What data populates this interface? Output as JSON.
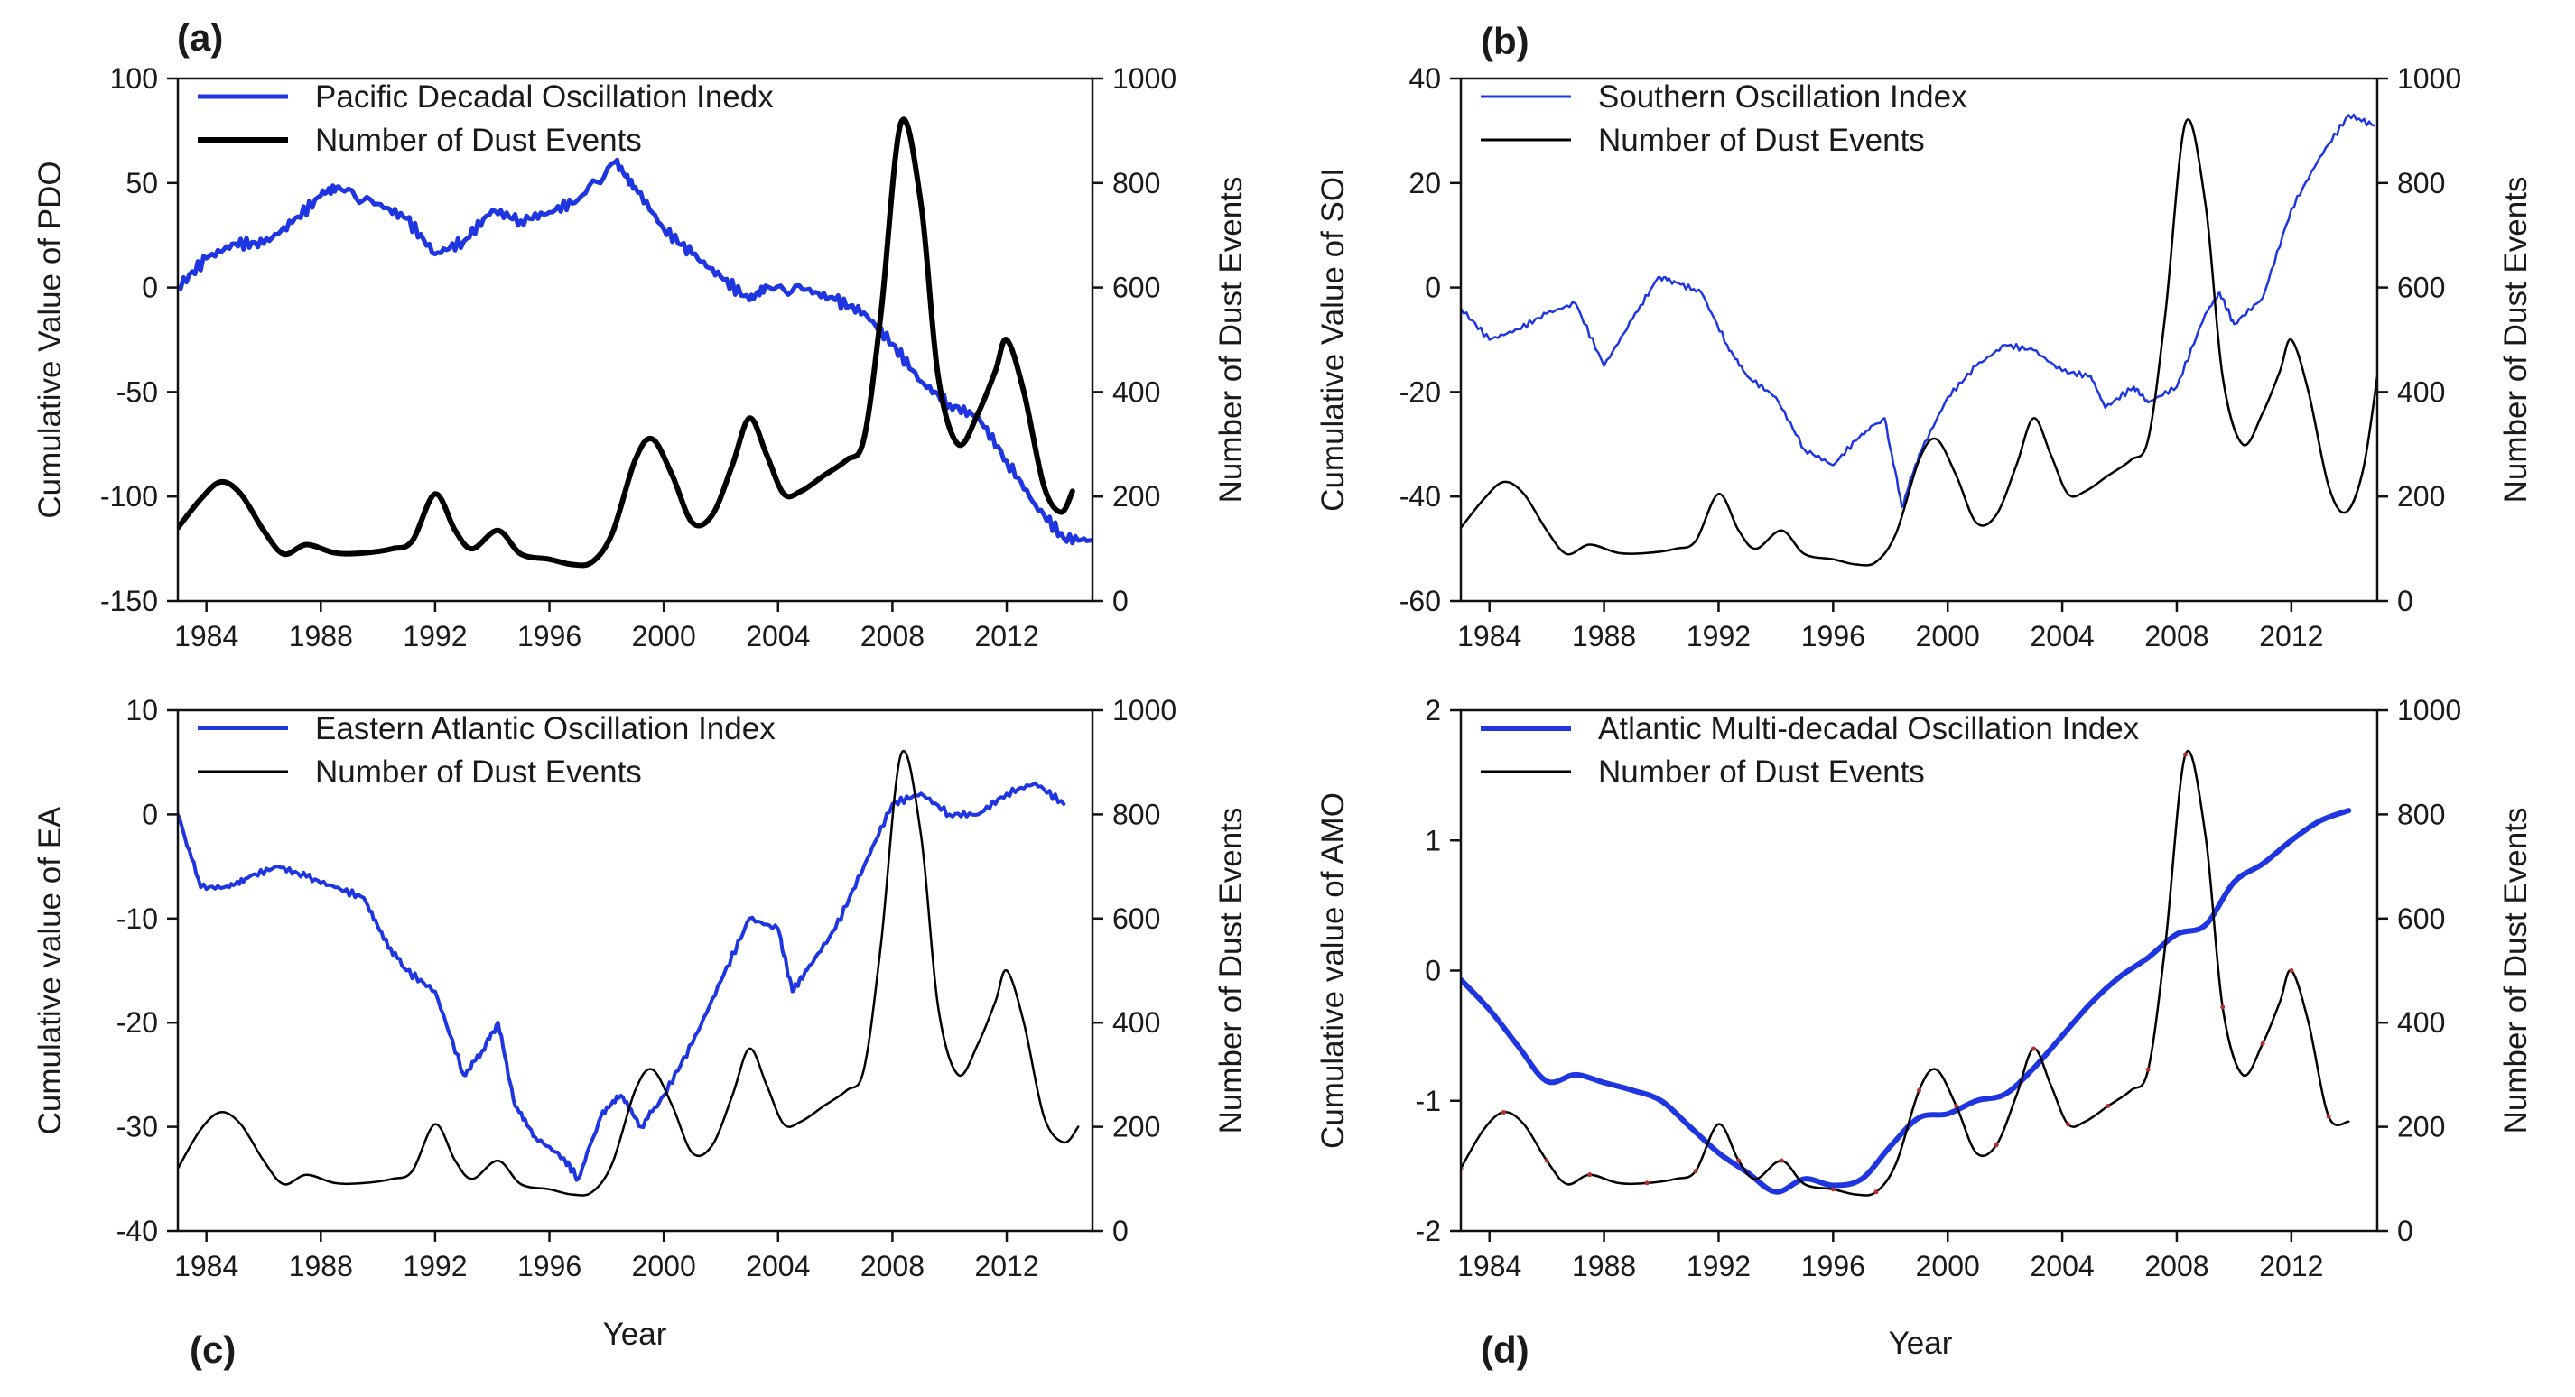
{
  "chart_data": [
    {
      "panel": "(a)",
      "type": "line",
      "xlabel": "",
      "ylabel": "Cumulative Value of PDO",
      "y2label": "Number of Dust Events",
      "xlim": [
        1983,
        2015
      ],
      "xticks": [
        1984,
        1988,
        1992,
        1996,
        2000,
        2004,
        2008,
        2012
      ],
      "ylim": [
        -150,
        100
      ],
      "yticks": [
        -150,
        -100,
        -50,
        0,
        50,
        100
      ],
      "y2lim": [
        0,
        1000
      ],
      "y2ticks": [
        0,
        200,
        400,
        600,
        800,
        1000
      ],
      "legend_position": "top-left",
      "series": [
        {
          "name": "Pacific Decadal Oscillation Inedx",
          "axis": "left",
          "color": "#1f35e0",
          "width": 5,
          "jitter": 1.0,
          "x": [
            1983,
            1984,
            1985,
            1986,
            1987,
            1988,
            1988.7,
            1990,
            1991,
            1992,
            1993,
            1994,
            1995,
            1996,
            1997,
            1998.3,
            1999,
            2000,
            2001,
            2002,
            2003,
            2003.7,
            2005,
            2006,
            2007,
            2008,
            2009,
            2010,
            2011,
            2012,
            2013,
            2014,
            2015
          ],
          "y": [
            0,
            14,
            21,
            21,
            31,
            44,
            47,
            40,
            33,
            16,
            22,
            37,
            32,
            36,
            42,
            60,
            48,
            28,
            16,
            5,
            -6,
            0,
            -1,
            -6,
            -12,
            -27,
            -45,
            -56,
            -62,
            -83,
            -104,
            -120,
            -121
          ]
        },
        {
          "name": "Number of Dust Events",
          "axis": "right",
          "color": "#000000",
          "width": 6,
          "jitter": 0,
          "x": [
            1983,
            1983.8,
            1984.5,
            1985.2,
            1986,
            1986.7,
            1987.5,
            1988.5,
            1989.5,
            1990.5,
            1991.2,
            1992,
            1992.7,
            1993.3,
            1994.2,
            1995,
            1996,
            1996.8,
            1997.5,
            1998.2,
            1999,
            1999.6,
            2000.3,
            2001,
            2001.7,
            2002.4,
            2003,
            2003.6,
            2004.2,
            2004.8,
            2005.6,
            2006.4,
            2007,
            2007.6,
            2008.3,
            2009,
            2009.6,
            2010.3,
            2011,
            2011.6,
            2012,
            2012.6,
            2013.3,
            2013.9,
            2014.3
          ],
          "y": [
            140,
            195,
            228,
            205,
            135,
            90,
            108,
            92,
            92,
            100,
            115,
            205,
            135,
            100,
            135,
            90,
            80,
            70,
            75,
            130,
            270,
            310,
            240,
            150,
            165,
            260,
            350,
            280,
            205,
            210,
            240,
            270,
            310,
            550,
            915,
            760,
            430,
            300,
            360,
            440,
            500,
            400,
            220,
            170,
            210
          ]
        }
      ]
    },
    {
      "panel": "(b)",
      "type": "line",
      "xlabel": "",
      "ylabel": "Cumulative Value of SOI",
      "y2label": "Number of Dust Events",
      "xlim": [
        1983,
        2015
      ],
      "xticks": [
        1984,
        1988,
        1992,
        1996,
        2000,
        2004,
        2008,
        2012
      ],
      "ylim": [
        -60,
        40
      ],
      "yticks": [
        -60,
        -40,
        -20,
        0,
        20,
        40
      ],
      "y2lim": [
        0,
        1000
      ],
      "y2ticks": [
        0,
        200,
        400,
        600,
        800,
        1000
      ],
      "legend_position": "top-left",
      "series": [
        {
          "name": "Southern Oscillation Index",
          "axis": "left",
          "color": "#1f35e0",
          "width": 2.5,
          "jitter": 0.5,
          "x": [
            1983,
            1984,
            1985,
            1986,
            1987,
            1988,
            1989,
            1989.9,
            1990.5,
            1991.4,
            1992.3,
            1993,
            1994,
            1995,
            1996,
            1997,
            1997.8,
            1998.4,
            1999,
            2000,
            2001,
            2002,
            2003,
            2004,
            2005,
            2005.5,
            2006.5,
            2007,
            2008,
            2009,
            2009.5,
            2010,
            2011,
            2012,
            2013,
            2014,
            2014.9
          ],
          "y": [
            -4,
            -10,
            -8,
            -5,
            -3,
            -15,
            -6,
            2,
            1,
            -1,
            -11,
            -17,
            -21,
            -31,
            -34,
            -28,
            -25,
            -42,
            -32,
            -21,
            -15,
            -11,
            -12,
            -16,
            -17,
            -23,
            -19,
            -22,
            -19,
            -5,
            -1,
            -7,
            -2,
            15,
            25,
            33,
            31
          ]
        },
        {
          "name": "Number of Dust Events",
          "axis": "right",
          "color": "#000000",
          "width": 2.5,
          "jitter": 0,
          "x": [
            1983,
            1983.8,
            1984.5,
            1985.2,
            1986,
            1986.7,
            1987.5,
            1988.5,
            1989.5,
            1990.5,
            1991.2,
            1992,
            1992.7,
            1993.3,
            1994.2,
            1995,
            1996,
            1996.8,
            1997.5,
            1998.2,
            1999,
            1999.6,
            2000.3,
            2001,
            2001.7,
            2002.4,
            2003,
            2003.6,
            2004.2,
            2004.8,
            2005.6,
            2006.4,
            2007,
            2007.6,
            2008.3,
            2009,
            2009.6,
            2010.3,
            2011,
            2011.6,
            2012,
            2012.6,
            2013.3,
            2013.9,
            2014.5,
            2015
          ],
          "y": [
            140,
            195,
            228,
            205,
            135,
            90,
            108,
            92,
            92,
            100,
            115,
            205,
            135,
            100,
            135,
            90,
            80,
            70,
            75,
            130,
            270,
            310,
            240,
            150,
            165,
            260,
            350,
            280,
            205,
            210,
            240,
            270,
            310,
            550,
            915,
            760,
            430,
            300,
            360,
            440,
            500,
            400,
            220,
            170,
            250,
            430
          ]
        }
      ]
    },
    {
      "panel": "(c)",
      "type": "line",
      "xlabel": "Year",
      "ylabel": "Cumulative value of EA",
      "y2label": "Number of Dust Events",
      "xlim": [
        1983,
        2015
      ],
      "xticks": [
        1984,
        1988,
        1992,
        1996,
        2000,
        2004,
        2008,
        2012
      ],
      "ylim": [
        -40,
        10
      ],
      "yticks": [
        -40,
        -30,
        -20,
        -10,
        0,
        10
      ],
      "y2lim": [
        0,
        1000
      ],
      "y2ticks": [
        0,
        200,
        400,
        600,
        800,
        1000
      ],
      "legend_position": "top-left",
      "series": [
        {
          "name": "Eastern Atlantic Oscillation Index",
          "axis": "left",
          "color": "#1f35e0",
          "width": 4,
          "jitter": 0.6,
          "x": [
            1983,
            1983.8,
            1984.8,
            1985.5,
            1986.5,
            1987.5,
            1988.5,
            1989.5,
            1990.2,
            1991,
            1992,
            1993,
            1993.6,
            1994.2,
            1994.8,
            1995.5,
            1996.5,
            1997,
            1997.8,
            1998.5,
            1999.2,
            2000,
            2001,
            2002,
            2003,
            2004,
            2004.5,
            2005,
            2006,
            2007,
            2008,
            2009,
            2010,
            2011,
            2012,
            2013,
            2014
          ],
          "y": [
            0,
            -7,
            -7,
            -6,
            -5,
            -6,
            -7,
            -8,
            -12,
            -15,
            -17,
            -25,
            -23,
            -20,
            -28,
            -31,
            -33,
            -35,
            -29,
            -27,
            -30,
            -27,
            -22,
            -16,
            -10,
            -11,
            -17,
            -15,
            -11,
            -5,
            1,
            2,
            0,
            0,
            2,
            3,
            1
          ]
        },
        {
          "name": "Number of Dust Events",
          "axis": "right",
          "color": "#000000",
          "width": 2.5,
          "jitter": 0,
          "x": [
            1983,
            1983.8,
            1984.5,
            1985.2,
            1986,
            1986.7,
            1987.5,
            1988.5,
            1989.5,
            1990.5,
            1991.2,
            1992,
            1992.7,
            1993.3,
            1994.2,
            1995,
            1996,
            1996.8,
            1997.5,
            1998.2,
            1999,
            1999.6,
            2000.3,
            2001,
            2001.7,
            2002.4,
            2003,
            2003.6,
            2004.2,
            2004.8,
            2005.6,
            2006.4,
            2007,
            2007.6,
            2008.3,
            2009,
            2009.6,
            2010.3,
            2011,
            2011.6,
            2012,
            2012.6,
            2013.3,
            2014,
            2014.5
          ],
          "y": [
            120,
            195,
            228,
            205,
            135,
            90,
            108,
            92,
            92,
            100,
            115,
            205,
            135,
            100,
            135,
            90,
            80,
            70,
            75,
            130,
            270,
            310,
            240,
            150,
            165,
            260,
            350,
            280,
            205,
            210,
            240,
            270,
            310,
            550,
            915,
            760,
            430,
            300,
            360,
            440,
            500,
            400,
            220,
            170,
            200
          ]
        }
      ]
    },
    {
      "panel": "(d)",
      "type": "line",
      "xlabel": "Year",
      "ylabel": "Cumulative value of AMO",
      "y2label": "Number of Dust Events",
      "xlim": [
        1983,
        2015
      ],
      "xticks": [
        1984,
        1988,
        1992,
        1996,
        2000,
        2004,
        2008,
        2012
      ],
      "ylim": [
        -2,
        2
      ],
      "yticks": [
        -2,
        -1,
        0,
        1,
        2
      ],
      "y2lim": [
        0,
        1000
      ],
      "y2ticks": [
        0,
        200,
        400,
        600,
        800,
        1000
      ],
      "legend_position": "top-left",
      "series": [
        {
          "name": "Atlantic Multi-decadal Oscillation Index",
          "axis": "left",
          "color": "#1f35e0",
          "width": 6,
          "jitter": 0,
          "x": [
            1983,
            1984,
            1985,
            1986,
            1987,
            1988,
            1989,
            1990,
            1991,
            1992,
            1993,
            1994,
            1995,
            1996,
            1997,
            1998,
            1999,
            2000,
            2001,
            2002,
            2003,
            2004,
            2005,
            2006,
            2007,
            2008,
            2009,
            2010,
            2011,
            2012,
            2013,
            2014
          ],
          "y": [
            -0.07,
            -0.3,
            -0.58,
            -0.85,
            -0.8,
            -0.86,
            -0.92,
            -1.0,
            -1.2,
            -1.4,
            -1.55,
            -1.7,
            -1.6,
            -1.65,
            -1.6,
            -1.35,
            -1.13,
            -1.1,
            -1.0,
            -0.95,
            -0.75,
            -0.5,
            -0.25,
            -0.05,
            0.1,
            0.28,
            0.35,
            0.68,
            0.82,
            1.0,
            1.15,
            1.23
          ]
        },
        {
          "name": "Number of Dust Events",
          "axis": "right",
          "color": "#000000",
          "width": 2.5,
          "jitter": 0,
          "markers": true,
          "x": [
            1983,
            1983.8,
            1984.5,
            1985.2,
            1986,
            1986.7,
            1987.5,
            1988.5,
            1989.5,
            1990.5,
            1991.2,
            1992,
            1992.7,
            1993.3,
            1994.2,
            1995,
            1996,
            1996.8,
            1997.5,
            1998.2,
            1999,
            1999.6,
            2000.3,
            2001,
            2001.7,
            2002.4,
            2003,
            2003.6,
            2004.2,
            2004.8,
            2005.6,
            2006.4,
            2007,
            2007.6,
            2008.3,
            2009,
            2009.6,
            2010.3,
            2011,
            2011.6,
            2012,
            2012.6,
            2013.3,
            2014
          ],
          "y": [
            120,
            195,
            228,
            205,
            135,
            90,
            108,
            92,
            92,
            100,
            115,
            205,
            135,
            100,
            135,
            90,
            80,
            70,
            75,
            130,
            270,
            310,
            240,
            150,
            165,
            260,
            350,
            280,
            205,
            210,
            240,
            270,
            310,
            550,
            915,
            760,
            430,
            300,
            360,
            440,
            500,
            400,
            220,
            210
          ]
        }
      ]
    }
  ]
}
